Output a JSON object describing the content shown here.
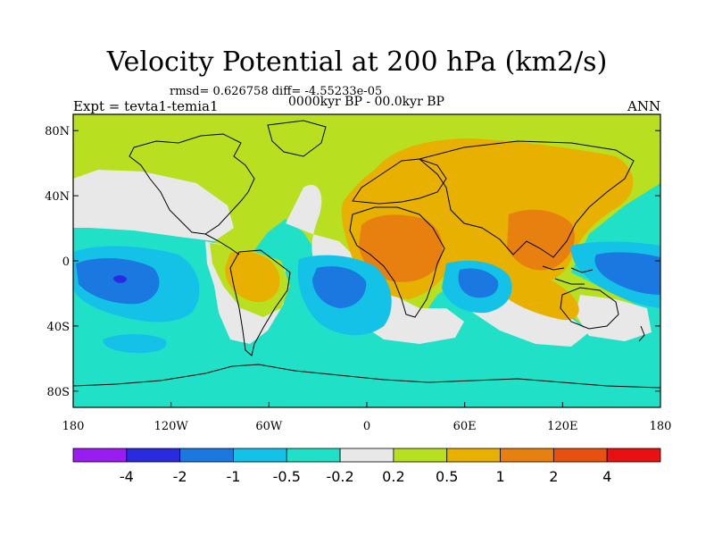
{
  "title": "Velocity Potential at 200 hPa (km2/s)",
  "stats": "rmsd= 0.626758 diff= -4.55233e-05",
  "expt": "Expt = tevta1-temia1",
  "period": "0000kyr BP - 00.0kyr BP",
  "season": "ANN",
  "lat_labels": [
    {
      "text": "80N",
      "lat": 80
    },
    {
      "text": "40N",
      "lat": 40
    },
    {
      "text": "0",
      "lat": 0
    },
    {
      "text": "40S",
      "lat": -40
    },
    {
      "text": "80S",
      "lat": -80
    }
  ],
  "lon_labels": [
    {
      "text": "180",
      "lon": -180
    },
    {
      "text": "120W",
      "lon": -120
    },
    {
      "text": "60W",
      "lon": -60
    },
    {
      "text": "0",
      "lon": 0
    },
    {
      "text": "60E",
      "lon": 60
    },
    {
      "text": "120E",
      "lon": 120
    },
    {
      "text": "180",
      "lon": 180
    }
  ],
  "colorbar": {
    "colors": [
      "#9a1cf0",
      "#2a2ae0",
      "#1a78e0",
      "#14c2e8",
      "#20e0c8",
      "#e8e8e8",
      "#b8e020",
      "#e8b000",
      "#e88010",
      "#e85010",
      "#e81010"
    ],
    "labels": [
      "-4",
      "-2",
      "-1",
      "-0.5",
      "-0.2",
      "0.2",
      "0.5",
      "1",
      "2",
      "4"
    ]
  },
  "palette": {
    "neg_strong": "#1a78e0",
    "neg_mid": "#14c2e8",
    "neg_weak": "#20e0c8",
    "neutral": "#e8e8e8",
    "pos_weak": "#b8e020",
    "pos_mid": "#e8b000",
    "pos_strong": "#e88010",
    "neg_deep": "#2a2ae0"
  }
}
